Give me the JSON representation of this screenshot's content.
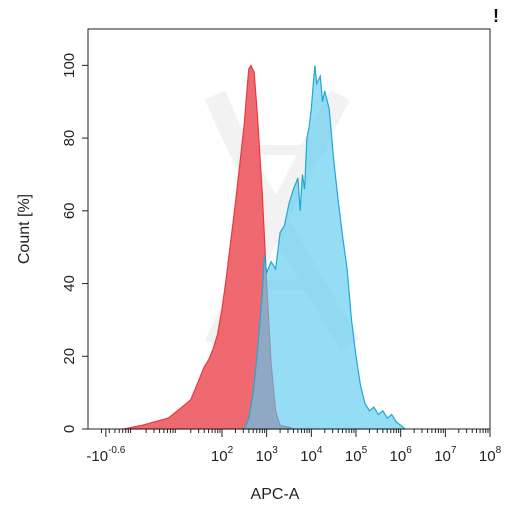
{
  "chart_data": {
    "type": "area",
    "title": "",
    "xlabel": "APC-A",
    "ylabel": "Count [%]",
    "xscale": "biexponential",
    "xlim_log10": [
      -1.0,
      8.0
    ],
    "ylim": [
      0,
      110
    ],
    "grid": false,
    "legend": "none",
    "corner_mark": "!",
    "x_ticks": [
      {
        "base": "-10",
        "exp": "-0.6",
        "log": -0.6
      },
      {
        "base": "10",
        "exp": "2",
        "log": 2
      },
      {
        "base": "10",
        "exp": "3",
        "log": 3
      },
      {
        "base": "10",
        "exp": "4",
        "log": 4
      },
      {
        "base": "10",
        "exp": "5",
        "log": 5
      },
      {
        "base": "10",
        "exp": "6",
        "log": 6
      },
      {
        "base": "10",
        "exp": "7",
        "log": 7
      },
      {
        "base": "10",
        "exp": "8",
        "log": 8
      }
    ],
    "y_ticks": [
      0,
      20,
      40,
      60,
      80,
      100
    ],
    "series": [
      {
        "color": "#e8393f",
        "fill": "#ec5a60",
        "points_log10": [
          [
            -0.2,
            0
          ],
          [
            0.2,
            1
          ],
          [
            0.5,
            2
          ],
          [
            0.8,
            3
          ],
          [
            1.0,
            5
          ],
          [
            1.1,
            6
          ],
          [
            1.3,
            8
          ],
          [
            1.5,
            14
          ],
          [
            1.6,
            17
          ],
          [
            1.7,
            19
          ],
          [
            1.8,
            22
          ],
          [
            1.9,
            26
          ],
          [
            2.0,
            33
          ],
          [
            2.1,
            42
          ],
          [
            2.2,
            52
          ],
          [
            2.3,
            62
          ],
          [
            2.4,
            73
          ],
          [
            2.5,
            84
          ],
          [
            2.55,
            92
          ],
          [
            2.6,
            99
          ],
          [
            2.65,
            100
          ],
          [
            2.72,
            98
          ],
          [
            2.8,
            85
          ],
          [
            2.9,
            65
          ],
          [
            3.0,
            40
          ],
          [
            3.1,
            18
          ],
          [
            3.2,
            5
          ],
          [
            3.3,
            1
          ],
          [
            3.5,
            0.5
          ],
          [
            3.6,
            0
          ]
        ]
      },
      {
        "color": "#1fa8d4",
        "fill": "#5ccaf0",
        "points_log10": [
          [
            2.5,
            0
          ],
          [
            2.6,
            3
          ],
          [
            2.7,
            10
          ],
          [
            2.8,
            22
          ],
          [
            2.9,
            37
          ],
          [
            2.95,
            48
          ],
          [
            3.0,
            43
          ],
          [
            3.1,
            46
          ],
          [
            3.2,
            44
          ],
          [
            3.3,
            54
          ],
          [
            3.4,
            56
          ],
          [
            3.5,
            62
          ],
          [
            3.6,
            66
          ],
          [
            3.7,
            69
          ],
          [
            3.75,
            60
          ],
          [
            3.8,
            70
          ],
          [
            3.85,
            66
          ],
          [
            3.9,
            80
          ],
          [
            3.95,
            83
          ],
          [
            4.0,
            88
          ],
          [
            4.05,
            96
          ],
          [
            4.08,
            100
          ],
          [
            4.12,
            95
          ],
          [
            4.2,
            97
          ],
          [
            4.25,
            90
          ],
          [
            4.3,
            93
          ],
          [
            4.4,
            88
          ],
          [
            4.5,
            74
          ],
          [
            4.6,
            63
          ],
          [
            4.7,
            53
          ],
          [
            4.8,
            44
          ],
          [
            4.9,
            30
          ],
          [
            5.0,
            20
          ],
          [
            5.1,
            12
          ],
          [
            5.2,
            7
          ],
          [
            5.3,
            5
          ],
          [
            5.4,
            6
          ],
          [
            5.5,
            4
          ],
          [
            5.6,
            5
          ],
          [
            5.7,
            3
          ],
          [
            5.8,
            4
          ],
          [
            5.9,
            2
          ],
          [
            6.0,
            1
          ],
          [
            6.1,
            0
          ]
        ]
      }
    ]
  }
}
